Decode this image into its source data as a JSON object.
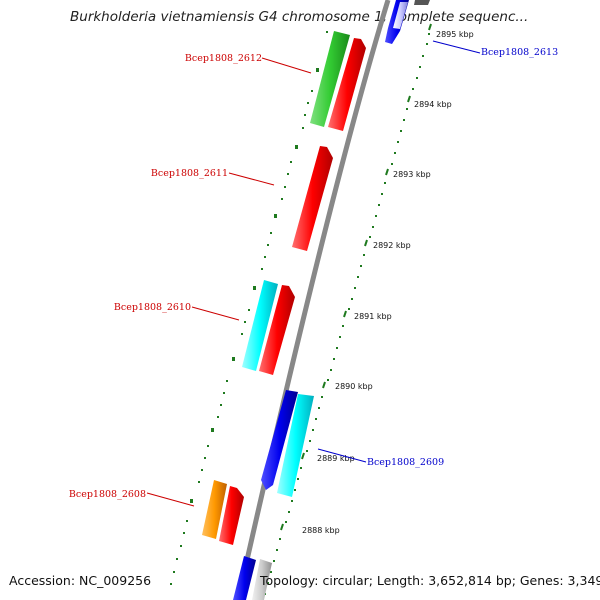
{
  "title": "Burkholderia vietnamiensis G4 chromosome 1, complete sequenc...",
  "footer": {
    "accession": "Accession: NC_009256",
    "summary": "Topology: circular; Length: 3,652,814 bp; Genes: 3,349"
  },
  "scale_ticks": [
    "2895 kbp",
    "2894 kbp",
    "2893 kbp",
    "2892 kbp",
    "2891 kbp",
    "2890 kbp",
    "2889 kbp",
    "2888 kbp"
  ],
  "gene_labels": [
    {
      "text": "Bcep1808_2613",
      "color": "#0000cc"
    },
    {
      "text": "Bcep1808_2612",
      "color": "#cc0000"
    },
    {
      "text": "Bcep1808_2611",
      "color": "#cc0000"
    },
    {
      "text": "Bcep1808_2610",
      "color": "#cc0000"
    },
    {
      "text": "Bcep1808_2609",
      "color": "#0000cc"
    },
    {
      "text": "Bcep1808_2608",
      "color": "#cc0000"
    }
  ],
  "colors": {
    "forward_cds": "#ff0000",
    "reverse_cds": "#0000ee",
    "cyan_cds": "#00ffff",
    "green_cds": "#33cc33",
    "orange_cds": "#ff9900",
    "gray_cds": "#cccccc",
    "backbone": "#888888",
    "tick": "#006600"
  }
}
